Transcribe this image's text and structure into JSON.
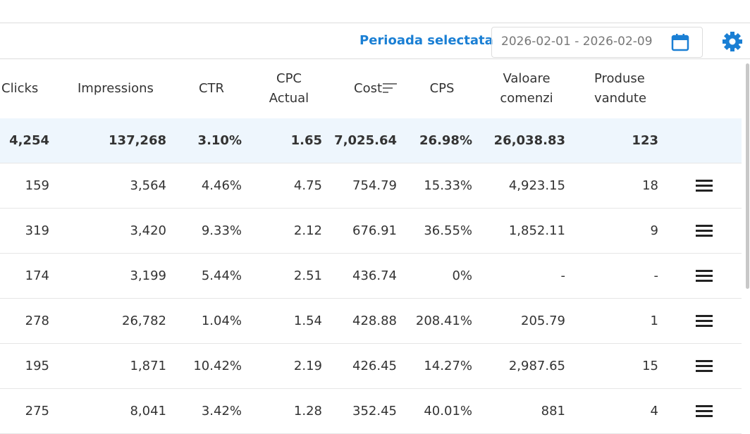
{
  "toolbar": {
    "label": "Perioada selectata",
    "date_range": "2026-02-01 - 2026-02-09"
  },
  "table": {
    "columns": [
      "Clicks",
      "Impressions",
      "CTR",
      "CPC Actual",
      "Cost",
      "CPS",
      "Valoare comenzi",
      "Produse vandute"
    ],
    "totals": [
      "4,254",
      "137,268",
      "3.10%",
      "1.65",
      "7,025.64",
      "26.98%",
      "26,038.83",
      "123"
    ],
    "rows": [
      [
        "159",
        "3,564",
        "4.46%",
        "4.75",
        "754.79",
        "15.33%",
        "4,923.15",
        "18"
      ],
      [
        "319",
        "3,420",
        "9.33%",
        "2.12",
        "676.91",
        "36.55%",
        "1,852.11",
        "9"
      ],
      [
        "174",
        "3,199",
        "5.44%",
        "2.51",
        "436.74",
        "0%",
        "-",
        "-"
      ],
      [
        "278",
        "26,782",
        "1.04%",
        "1.54",
        "428.88",
        "208.41%",
        "205.79",
        "1"
      ],
      [
        "195",
        "1,871",
        "10.42%",
        "2.19",
        "426.45",
        "14.27%",
        "2,987.65",
        "15"
      ],
      [
        "275",
        "8,041",
        "3.42%",
        "1.28",
        "352.45",
        "40.01%",
        "881",
        "4"
      ]
    ]
  }
}
